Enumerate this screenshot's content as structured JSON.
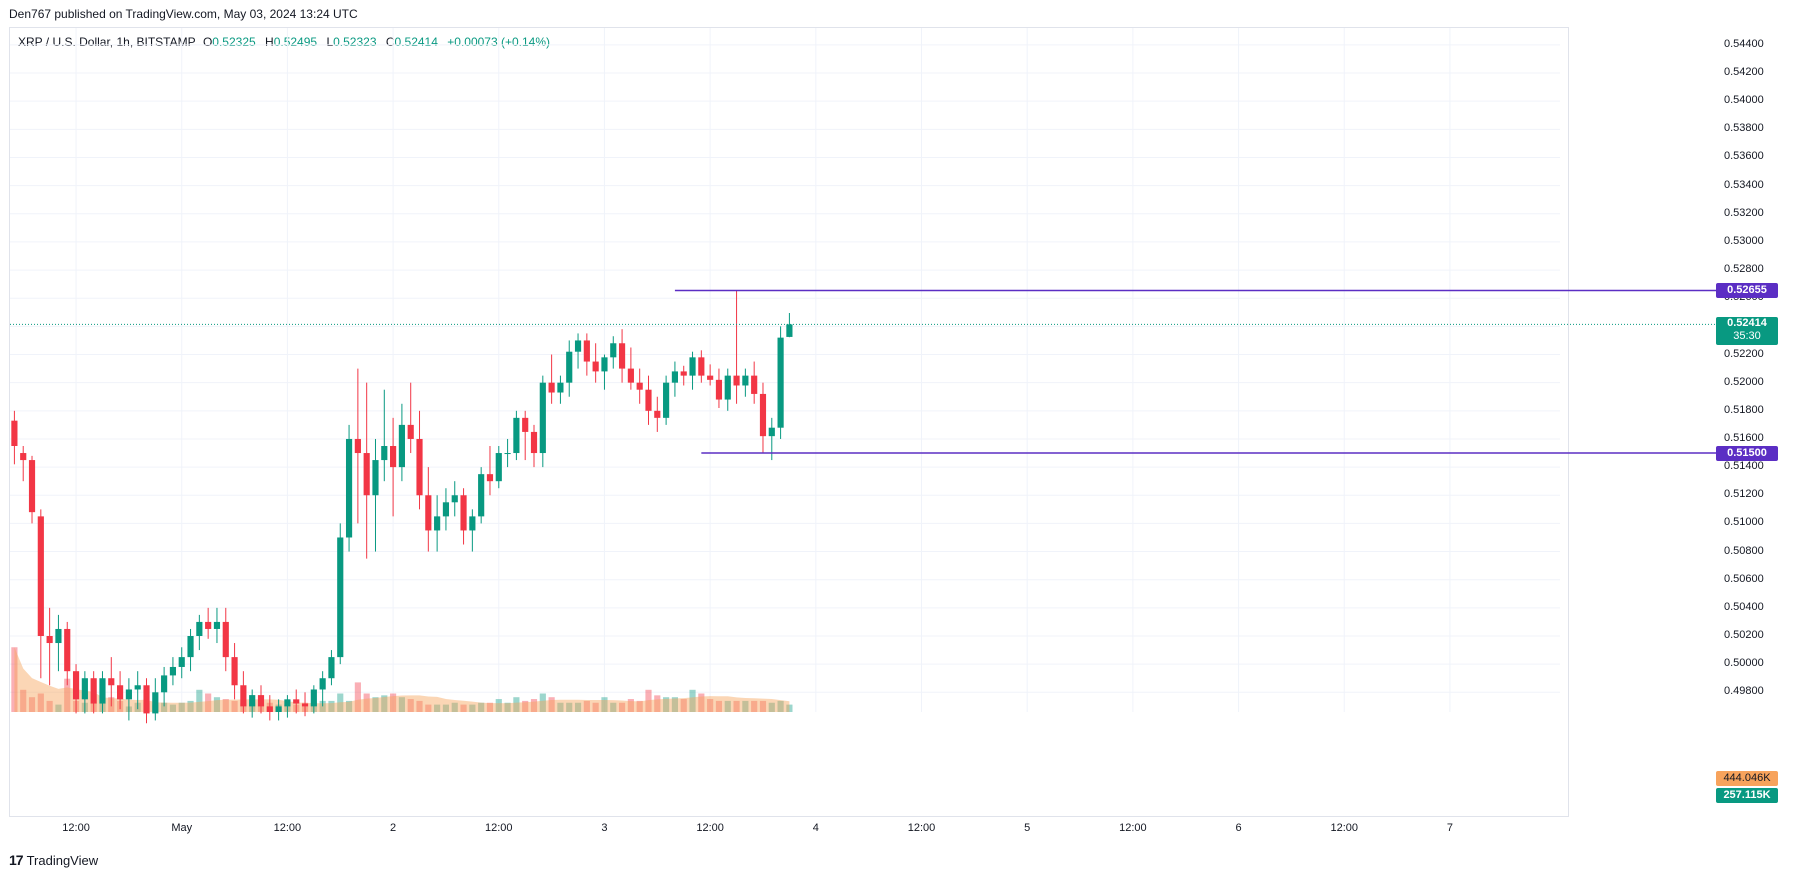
{
  "header": {
    "publisher": "Den767 published on TradingView.com, May 03, 2024 13:24 UTC"
  },
  "legend": {
    "symbol": "XRP / U.S. Dollar, 1h, BITSTAMP",
    "open_label": "O",
    "open": "0.52325",
    "high_label": "H",
    "high": "0.52495",
    "low_label": "L",
    "low": "0.52323",
    "close_label": "C",
    "close": "0.52414",
    "change": "+0.00073 (+0.14%)"
  },
  "price_tags": {
    "resistance": "0.52655",
    "last_price": "0.52414",
    "countdown": "35:30",
    "support": "0.51500",
    "volume_ma": "444.046K",
    "volume": "257.115K"
  },
  "footer": {
    "brand": "TradingView",
    "logo_text": "17"
  },
  "colors": {
    "up": "#089981",
    "down": "#f23645",
    "level_line": "#5b2ec4",
    "last_price": "#089981",
    "volume_ma": "#f7a35c"
  },
  "chart_data": {
    "type": "candlestick",
    "title": "XRP / U.S. Dollar, 1h, BITSTAMP",
    "y_ticks": [
      "0.54400",
      "0.54200",
      "0.54000",
      "0.53800",
      "0.53600",
      "0.53400",
      "0.53200",
      "0.53000",
      "0.52800",
      "0.52600",
      "0.52400",
      "0.52200",
      "0.52000",
      "0.51800",
      "0.51600",
      "0.51400",
      "0.51200",
      "0.51000",
      "0.50800",
      "0.50600",
      "0.50400",
      "0.50200",
      "0.50000",
      "0.49800"
    ],
    "x_ticks": [
      {
        "label": "12:00",
        "index": 7
      },
      {
        "label": "May",
        "index": 19
      },
      {
        "label": "12:00",
        "index": 31
      },
      {
        "label": "2",
        "index": 43
      },
      {
        "label": "12:00",
        "index": 55
      },
      {
        "label": "3",
        "index": 67
      },
      {
        "label": "12:00",
        "index": 79
      },
      {
        "label": "4",
        "index": 91
      },
      {
        "label": "12:00",
        "index": 103
      },
      {
        "label": "5",
        "index": 115
      },
      {
        "label": "12:00",
        "index": 127
      },
      {
        "label": "6",
        "index": 139
      },
      {
        "label": "12:00",
        "index": 151
      },
      {
        "label": "7",
        "index": 163
      }
    ],
    "levels": [
      {
        "name": "resistance",
        "value": 0.52655,
        "start_index": 75
      },
      {
        "name": "support",
        "value": 0.515,
        "start_index": 78
      }
    ],
    "last_price": 0.52414,
    "ylim": [
      0.4966,
      0.5452
    ],
    "x_slots": 176,
    "candles": [
      [
        0.5173,
        0.518,
        0.5142,
        0.5155
      ],
      [
        0.515,
        0.5155,
        0.513,
        0.5145
      ],
      [
        0.5145,
        0.5148,
        0.51,
        0.5108
      ],
      [
        0.5105,
        0.511,
        0.499,
        0.502
      ],
      [
        0.502,
        0.504,
        0.4985,
        0.5015
      ],
      [
        0.5015,
        0.5035,
        0.4995,
        0.5025
      ],
      [
        0.5025,
        0.503,
        0.4985,
        0.4995
      ],
      [
        0.4995,
        0.5,
        0.4965,
        0.4975
      ],
      [
        0.4975,
        0.4995,
        0.4965,
        0.499
      ],
      [
        0.499,
        0.4995,
        0.4965,
        0.4972
      ],
      [
        0.4972,
        0.4995,
        0.4965,
        0.499
      ],
      [
        0.499,
        0.5005,
        0.497,
        0.4985
      ],
      [
        0.4985,
        0.4995,
        0.4968,
        0.4975
      ],
      [
        0.4975,
        0.499,
        0.496,
        0.4982
      ],
      [
        0.4982,
        0.4995,
        0.4968,
        0.4985
      ],
      [
        0.4985,
        0.499,
        0.4958,
        0.4965
      ],
      [
        0.4965,
        0.499,
        0.496,
        0.498
      ],
      [
        0.498,
        0.4998,
        0.497,
        0.4992
      ],
      [
        0.4992,
        0.5005,
        0.4985,
        0.4998
      ],
      [
        0.4998,
        0.5012,
        0.499,
        0.5005
      ],
      [
        0.5005,
        0.5025,
        0.4995,
        0.502
      ],
      [
        0.502,
        0.5035,
        0.501,
        0.503
      ],
      [
        0.503,
        0.504,
        0.5018,
        0.5025
      ],
      [
        0.5025,
        0.504,
        0.5015,
        0.503
      ],
      [
        0.503,
        0.504,
        0.4995,
        0.5005
      ],
      [
        0.5005,
        0.5015,
        0.4975,
        0.4985
      ],
      [
        0.4985,
        0.4995,
        0.4965,
        0.497
      ],
      [
        0.497,
        0.4982,
        0.4962,
        0.4978
      ],
      [
        0.4978,
        0.4985,
        0.4965,
        0.497
      ],
      [
        0.497,
        0.4978,
        0.496,
        0.4966
      ],
      [
        0.4966,
        0.4975,
        0.496,
        0.497
      ],
      [
        0.497,
        0.4978,
        0.4962,
        0.4975
      ],
      [
        0.4975,
        0.4982,
        0.4965,
        0.4972
      ],
      [
        0.4972,
        0.498,
        0.4963,
        0.497
      ],
      [
        0.497,
        0.4985,
        0.4965,
        0.4982
      ],
      [
        0.4982,
        0.4995,
        0.497,
        0.499
      ],
      [
        0.499,
        0.501,
        0.4985,
        0.5005
      ],
      [
        0.5005,
        0.51,
        0.5,
        0.509
      ],
      [
        0.509,
        0.517,
        0.508,
        0.516
      ],
      [
        0.516,
        0.521,
        0.51,
        0.515
      ],
      [
        0.515,
        0.52,
        0.5075,
        0.512
      ],
      [
        0.512,
        0.516,
        0.508,
        0.5145
      ],
      [
        0.5145,
        0.5195,
        0.513,
        0.5155
      ],
      [
        0.5155,
        0.5175,
        0.5105,
        0.514
      ],
      [
        0.514,
        0.5185,
        0.513,
        0.517
      ],
      [
        0.517,
        0.52,
        0.515,
        0.516
      ],
      [
        0.516,
        0.518,
        0.511,
        0.512
      ],
      [
        0.512,
        0.514,
        0.508,
        0.5095
      ],
      [
        0.5095,
        0.512,
        0.508,
        0.5105
      ],
      [
        0.5105,
        0.5125,
        0.5095,
        0.5115
      ],
      [
        0.5115,
        0.513,
        0.5105,
        0.512
      ],
      [
        0.512,
        0.5125,
        0.5085,
        0.5095
      ],
      [
        0.5095,
        0.511,
        0.508,
        0.5105
      ],
      [
        0.5105,
        0.514,
        0.51,
        0.5135
      ],
      [
        0.5135,
        0.5155,
        0.512,
        0.513
      ],
      [
        0.513,
        0.5155,
        0.5125,
        0.515
      ],
      [
        0.515,
        0.516,
        0.514,
        0.515
      ],
      [
        0.515,
        0.518,
        0.5145,
        0.5175
      ],
      [
        0.5175,
        0.518,
        0.5145,
        0.5165
      ],
      [
        0.5165,
        0.517,
        0.514,
        0.515
      ],
      [
        0.515,
        0.5205,
        0.514,
        0.52
      ],
      [
        0.52,
        0.522,
        0.5185,
        0.5193
      ],
      [
        0.5193,
        0.5205,
        0.5185,
        0.52
      ],
      [
        0.52,
        0.523,
        0.519,
        0.5222
      ],
      [
        0.5222,
        0.5235,
        0.521,
        0.523
      ],
      [
        0.523,
        0.5235,
        0.5205,
        0.5215
      ],
      [
        0.5215,
        0.5228,
        0.52,
        0.5208
      ],
      [
        0.5208,
        0.522,
        0.5195,
        0.5218
      ],
      [
        0.5218,
        0.5233,
        0.521,
        0.5228
      ],
      [
        0.5228,
        0.5238,
        0.52,
        0.521
      ],
      [
        0.521,
        0.5225,
        0.5195,
        0.52
      ],
      [
        0.52,
        0.521,
        0.5185,
        0.5195
      ],
      [
        0.5195,
        0.5205,
        0.517,
        0.518
      ],
      [
        0.518,
        0.519,
        0.5165,
        0.5175
      ],
      [
        0.5175,
        0.5205,
        0.517,
        0.52
      ],
      [
        0.52,
        0.5215,
        0.519,
        0.5208
      ],
      [
        0.5208,
        0.5212,
        0.5198,
        0.5205
      ],
      [
        0.5205,
        0.5222,
        0.5195,
        0.5218
      ],
      [
        0.5218,
        0.5223,
        0.52,
        0.5205
      ],
      [
        0.5205,
        0.5213,
        0.5198,
        0.5202
      ],
      [
        0.5202,
        0.521,
        0.5182,
        0.5188
      ],
      [
        0.5188,
        0.521,
        0.518,
        0.5205
      ],
      [
        0.5205,
        0.52655,
        0.5185,
        0.5198
      ],
      [
        0.5198,
        0.521,
        0.519,
        0.5205
      ],
      [
        0.5205,
        0.5215,
        0.5185,
        0.5192
      ],
      [
        0.5192,
        0.52,
        0.515,
        0.5162
      ],
      [
        0.5162,
        0.5175,
        0.5145,
        0.5168
      ],
      [
        0.5168,
        0.524,
        0.516,
        0.5232
      ],
      [
        0.52325,
        0.52495,
        0.52323,
        0.52414
      ]
    ],
    "volume": {
      "ma_label": "444.046K",
      "last_label": "257.115K",
      "ylim": [
        0,
        1
      ],
      "values": [
        0.35,
        0.12,
        0.08,
        0.1,
        0.06,
        0.04,
        0.18,
        0.06,
        0.05,
        0.05,
        0.05,
        0.08,
        0.06,
        0.03,
        0.05,
        0.05,
        0.04,
        0.05,
        0.04,
        0.05,
        0.06,
        0.12,
        0.1,
        0.08,
        0.07,
        0.06,
        0.05,
        0.05,
        0.04,
        0.05,
        0.04,
        0.04,
        0.04,
        0.05,
        0.05,
        0.06,
        0.06,
        0.1,
        0.06,
        0.16,
        0.1,
        0.08,
        0.09,
        0.1,
        0.08,
        0.07,
        0.06,
        0.04,
        0.04,
        0.04,
        0.05,
        0.04,
        0.04,
        0.05,
        0.05,
        0.07,
        0.05,
        0.08,
        0.06,
        0.07,
        0.1,
        0.08,
        0.05,
        0.05,
        0.05,
        0.06,
        0.05,
        0.08,
        0.05,
        0.05,
        0.07,
        0.06,
        0.12,
        0.09,
        0.08,
        0.08,
        0.07,
        0.12,
        0.1,
        0.07,
        0.06,
        0.06,
        0.06,
        0.06,
        0.06,
        0.06,
        0.05,
        0.06,
        0.04
      ]
    }
  }
}
